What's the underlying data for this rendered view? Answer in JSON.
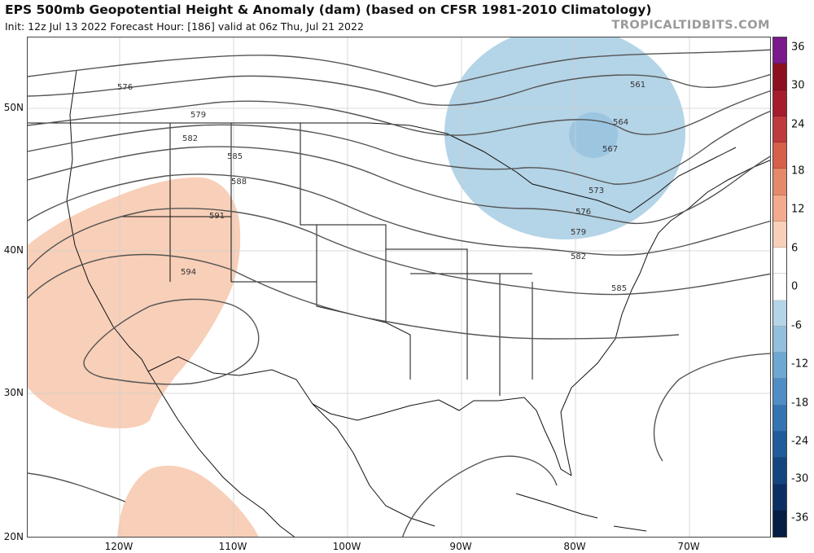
{
  "header": {
    "title": "EPS 500mb Geopotential Height & Anomaly (dam) (based on CFSR 1981-2010 Climatology)",
    "subtitle": "Init: 12z Jul 13 2022   Forecast Hour: [186]   valid at 06z Thu, Jul 21 2022",
    "brand": "TROPICALTIDBITS.COM"
  },
  "map": {
    "lat_labels": [
      "50N",
      "40N",
      "30N",
      "20N"
    ],
    "lon_labels": [
      "120W",
      "110W",
      "100W",
      "90W",
      "80W",
      "70W"
    ],
    "contour_labels": [
      "576",
      "579",
      "582",
      "585",
      "588",
      "591",
      "594",
      "561",
      "564",
      "567",
      "573",
      "576",
      "579",
      "582",
      "585"
    ],
    "anomalies": [
      {
        "region": "western-us-positive-anomaly",
        "sign": "positive",
        "color": "#f8cfb8"
      },
      {
        "region": "baja-positive-anomaly",
        "sign": "positive",
        "color": "#f8cfb8"
      },
      {
        "region": "great-lakes-negative-anomaly",
        "sign": "negative",
        "color": "#b4d4e7"
      }
    ]
  },
  "colorbar": {
    "labels": [
      "36",
      "30",
      "24",
      "18",
      "12",
      "6",
      "0",
      "-6",
      "-12",
      "-18",
      "-24",
      "-30",
      "-36"
    ],
    "colors": [
      "#7a1a8c",
      "#8c1020",
      "#a51c2c",
      "#bf3a3c",
      "#d6604a",
      "#e48a6a",
      "#f2ab8c",
      "#f8cfb8",
      "#ffffff",
      "#ffffff",
      "#b4d4e7",
      "#92bfdc",
      "#6ea8d2",
      "#4f8ec5",
      "#3474b3",
      "#205c9c",
      "#13467f",
      "#0c2f63",
      "#061d45"
    ]
  }
}
